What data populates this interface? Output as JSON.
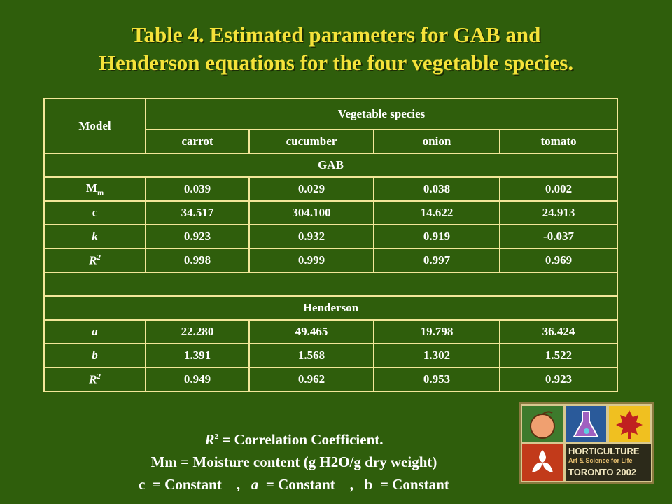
{
  "title": {
    "line1": "Table 4. Estimated parameters for GAB and",
    "line2": "Henderson equations for the four vegetable species."
  },
  "table": {
    "model_header": "Model",
    "species_header": "Vegetable species",
    "species": [
      "carrot",
      "cucumber",
      "onion",
      "tomato"
    ],
    "gab_label": "GAB",
    "henderson_label": "Henderson",
    "gab_rows": [
      {
        "param": "M",
        "sub": "m",
        "values": [
          "0.039",
          "0.029",
          "0.038",
          "0.002"
        ]
      },
      {
        "param": "c",
        "values": [
          "34.517",
          "304.100",
          "14.622",
          "24.913"
        ]
      },
      {
        "param": "k",
        "values": [
          "0.923",
          "0.932",
          "0.919",
          "-0.037"
        ]
      },
      {
        "param": "R",
        "sup": "2",
        "values": [
          "0.998",
          "0.999",
          "0.997",
          "0.969"
        ]
      }
    ],
    "henderson_rows": [
      {
        "param": "a",
        "values": [
          "22.280",
          "49.465",
          "19.798",
          "36.424"
        ]
      },
      {
        "param": "b",
        "values": [
          "1.391",
          "1.568",
          "1.302",
          "1.522"
        ]
      },
      {
        "param": "R",
        "sup": "2",
        "values": [
          "0.949",
          "0.962",
          "0.953",
          "0.923"
        ]
      }
    ]
  },
  "notes": {
    "r2_symbol": "R",
    "r2_sup": "2",
    "r2_text": " = Correlation Coefficient.",
    "mm_text": "Mm = Moisture content (g H2O/g dry weight)",
    "c_symbol": "c",
    "c_text": "  = Constant    ,   ",
    "a_symbol": "a",
    "a_text": "  = Constant    ,   ",
    "b_symbol": "b",
    "b_text": "  = Constant"
  },
  "logo": {
    "line1": "HORTICULTURE",
    "line2": "Art & Science for Life",
    "line3": "TORONTO 2002"
  }
}
